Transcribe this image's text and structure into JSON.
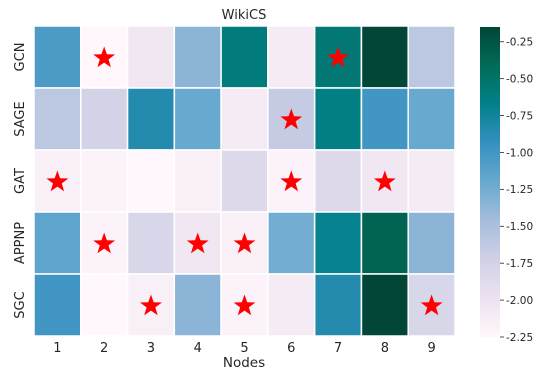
{
  "chart_data": {
    "type": "heatmap",
    "title": "WikiCS",
    "xlabel": "Nodes",
    "ylabel": "",
    "x_categories": [
      "1",
      "2",
      "3",
      "4",
      "5",
      "6",
      "7",
      "8",
      "9"
    ],
    "y_categories": [
      "GCN",
      "SAGE",
      "GAT",
      "APPNP",
      "SGC"
    ],
    "values": [
      [
        -1.05,
        -2.25,
        -2.05,
        -1.35,
        -0.6,
        -2.1,
        -0.55,
        -0.15,
        -1.6
      ],
      [
        -1.6,
        -1.75,
        -0.85,
        -1.2,
        -2.1,
        -1.65,
        -0.65,
        -1.0,
        -1.2
      ],
      [
        -2.15,
        -2.2,
        -2.25,
        -2.15,
        -1.85,
        -2.2,
        -1.85,
        -2.05,
        -2.1
      ],
      [
        -1.15,
        -2.2,
        -1.8,
        -2.05,
        -2.15,
        -1.25,
        -0.7,
        -0.35,
        -1.35
      ],
      [
        -1.0,
        -2.25,
        -2.15,
        -1.35,
        -2.2,
        -2.1,
        -0.85,
        -0.15,
        -1.8
      ]
    ],
    "stars": [
      {
        "row": "GCN",
        "col": "2"
      },
      {
        "row": "GCN",
        "col": "7"
      },
      {
        "row": "SAGE",
        "col": "6"
      },
      {
        "row": "GAT",
        "col": "1"
      },
      {
        "row": "GAT",
        "col": "6"
      },
      {
        "row": "GAT",
        "col": "8"
      },
      {
        "row": "APPNP",
        "col": "2"
      },
      {
        "row": "APPNP",
        "col": "4"
      },
      {
        "row": "APPNP",
        "col": "5"
      },
      {
        "row": "SGC",
        "col": "3"
      },
      {
        "row": "SGC",
        "col": "5"
      },
      {
        "row": "SGC",
        "col": "9"
      }
    ],
    "colorbar": {
      "min": -2.25,
      "max": -0.15,
      "ticks": [
        -0.25,
        -0.5,
        -0.75,
        -1.0,
        -1.25,
        -1.5,
        -1.75,
        -2.0,
        -2.25
      ],
      "tick_labels": [
        "-0.25",
        "-0.50",
        "-0.75",
        "-1.00",
        "-1.25",
        "-1.50",
        "-1.75",
        "-2.00",
        "-2.25"
      ]
    },
    "colormap": [
      "#fff7fb",
      "#ece2f0",
      "#d0d1e6",
      "#a6bddb",
      "#67a9cf",
      "#3690c0",
      "#02818a",
      "#016c59",
      "#014636"
    ],
    "star_color": "#ff0000",
    "grid": false,
    "legend": "none"
  }
}
